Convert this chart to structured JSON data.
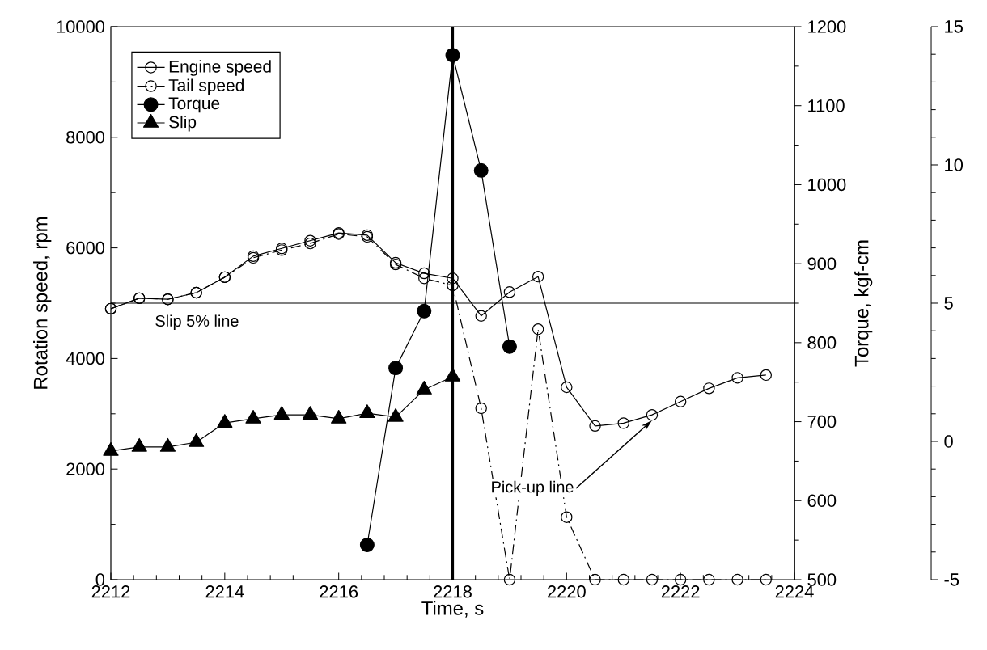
{
  "chart_data": {
    "type": "line",
    "xlabel": "Time, s",
    "ylabel": "Rotation speed, rpm",
    "y2label": "Torque, kgf-cm",
    "xlim": [
      2212,
      2224
    ],
    "xticks": [
      2212,
      2214,
      2216,
      2218,
      2220,
      2222,
      2224
    ],
    "ylim": [
      0,
      10000
    ],
    "yticks": [
      0,
      2000,
      4000,
      6000,
      8000,
      10000
    ],
    "y2lim": [
      500,
      1200
    ],
    "y2ticks": [
      500,
      600,
      700,
      800,
      900,
      1000,
      1100,
      1200
    ],
    "y3lim": [
      -5,
      15
    ],
    "y3ticks": [
      -5,
      0,
      5,
      10,
      15
    ],
    "legend": "top left",
    "grid": false,
    "series": [
      {
        "name": "Engine speed",
        "color": "#000000",
        "marker": "circle-open",
        "line_style": "solid",
        "x": [
          2212,
          2212.5,
          2213,
          2213.5,
          2214,
          2214.5,
          2215,
          2215.5,
          2216,
          2216.5,
          2217,
          2217.5,
          2218,
          2218.5,
          2219,
          2219.5,
          2220,
          2220.5,
          2221,
          2221.5,
          2222,
          2222.5,
          2223,
          2223.5
        ],
        "values": [
          4900,
          5090,
          5070,
          5190,
          5470,
          5850,
          5990,
          6130,
          6270,
          6230,
          5730,
          5540,
          5450,
          4770,
          5200,
          5480,
          3480,
          2780,
          2830,
          2980,
          3220,
          3460,
          3650,
          3700
        ]
      },
      {
        "name": "Tail speed",
        "color": "#000000",
        "marker": "circle-open",
        "line_style": "dashdot",
        "x": [
          2212,
          2212.5,
          2213,
          2213.5,
          2214,
          2214.5,
          2215,
          2215.5,
          2216,
          2216.5,
          2217,
          2217.5,
          2218,
          2218.5,
          2219,
          2219.5,
          2220,
          2220.5,
          2221,
          2221.5,
          2222,
          2222.5,
          2223,
          2223.5
        ],
        "values": [
          4900,
          5090,
          5070,
          5190,
          5470,
          5820,
          5960,
          6080,
          6250,
          6200,
          5700,
          5450,
          5320,
          3100,
          0,
          4530,
          1130,
          0,
          0,
          0,
          0,
          0,
          0,
          0
        ]
      },
      {
        "name": "Torque",
        "color": "#000000",
        "marker": "circle",
        "line_style": "solid",
        "axis": "y2",
        "x": [
          2216.5,
          2217,
          2217.5,
          2218,
          2218.5,
          2219
        ],
        "values": [
          544,
          768,
          840,
          1164,
          1018,
          795
        ]
      },
      {
        "name": "Slip",
        "color": "#000000",
        "marker": "triangle",
        "line_style": "solid",
        "axis": "y3",
        "x": [
          2212,
          2212.5,
          2213,
          2213.5,
          2214,
          2214.5,
          2215,
          2215.5,
          2216,
          2216.5,
          2217,
          2217.5,
          2218
        ],
        "values": [
          -0.35,
          -0.2,
          -0.2,
          -0.03,
          0.67,
          0.82,
          0.96,
          0.96,
          0.82,
          1.02,
          0.88,
          1.87,
          2.34
        ]
      }
    ],
    "ref_lines": [
      {
        "axis": "y3",
        "value": 5,
        "label": "Slip 5% line"
      },
      {
        "axis": "x",
        "value": 2218,
        "line_style": "solid"
      }
    ],
    "annotations": [
      {
        "text": "Pick-up line",
        "x": 2221.5,
        "y": 2880
      }
    ]
  }
}
